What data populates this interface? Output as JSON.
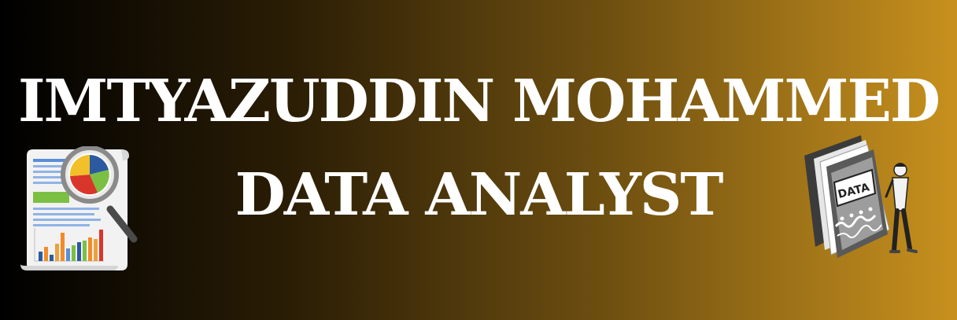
{
  "banner": {
    "name": "IMTYAZUDDIN MOHAMMED",
    "role": "DATA ANALYST",
    "book_label": "DATA",
    "gradient": [
      "#000000",
      "#2a1d05",
      "#6b4d10",
      "#c8911e"
    ]
  },
  "icons": {
    "left": "report-magnifier-icon",
    "right": "data-book-person-icon"
  }
}
